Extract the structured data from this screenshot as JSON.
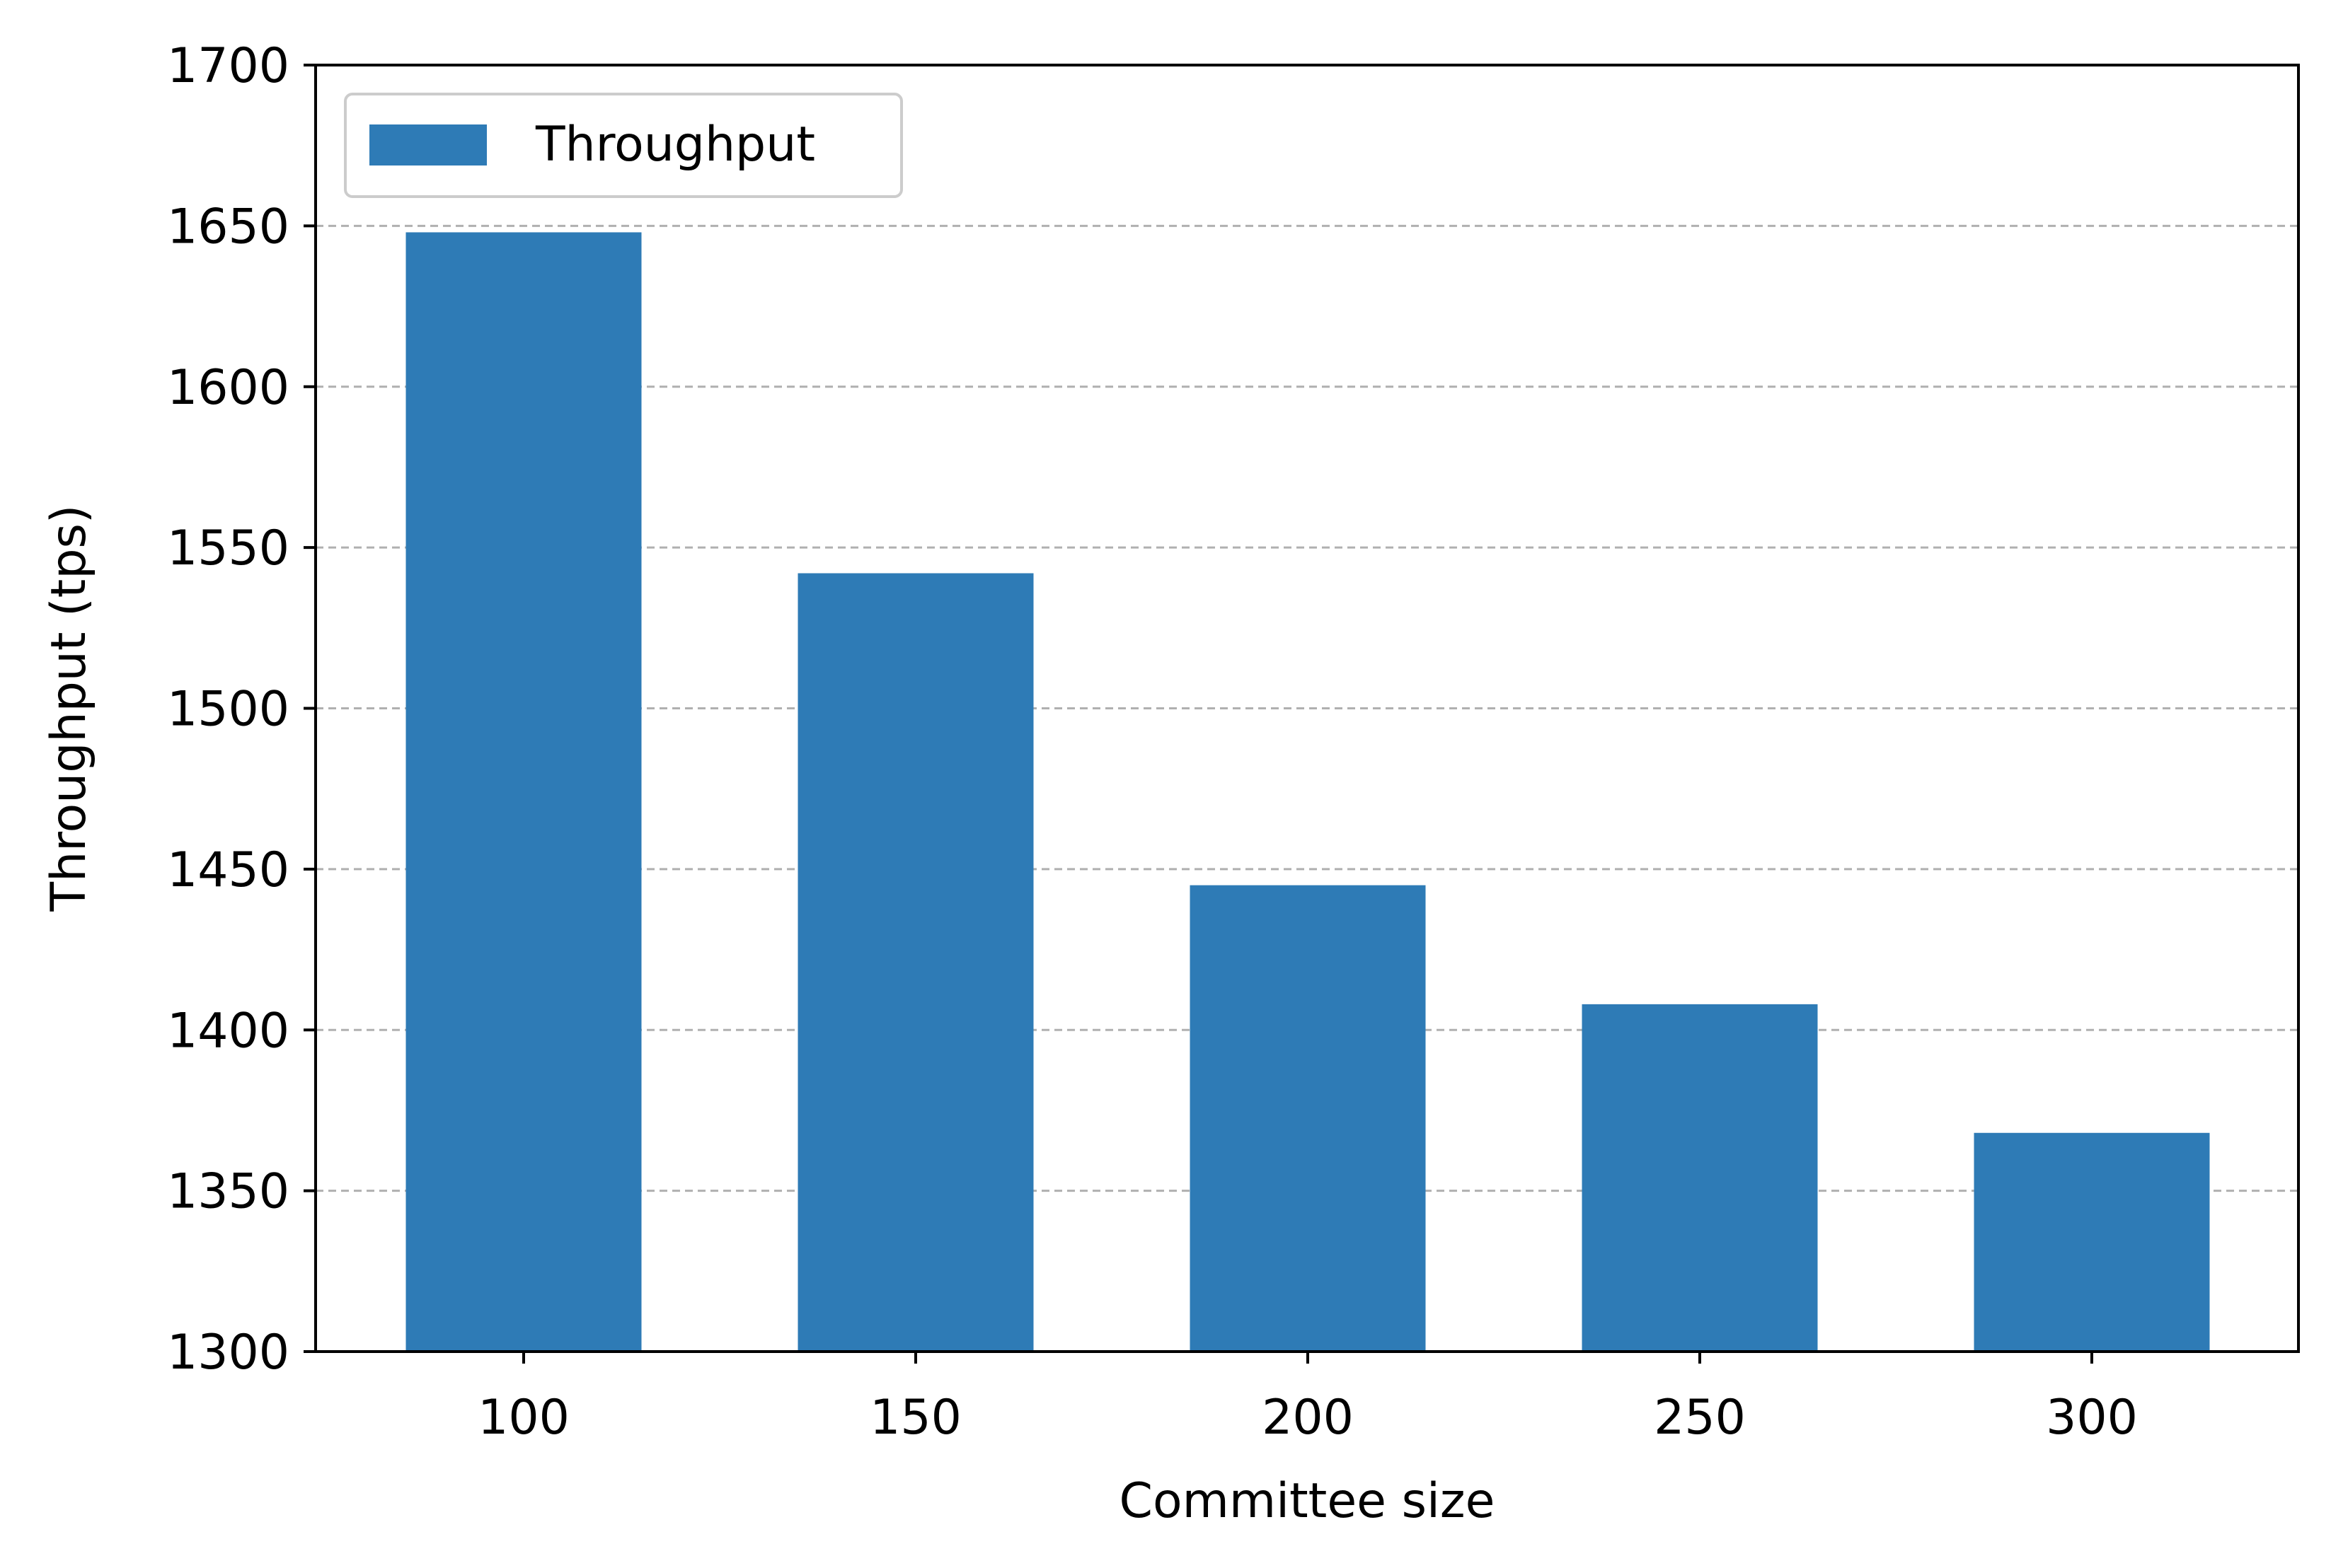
{
  "chart_data": {
    "type": "bar",
    "title": "",
    "xlabel": "Committee size",
    "ylabel": "Throughput (tps)",
    "categories": [
      "100",
      "150",
      "200",
      "250",
      "300"
    ],
    "series": [
      {
        "name": "Throughput",
        "color": "#2e7bb6",
        "values": [
          1648,
          1542,
          1445,
          1408,
          1368
        ]
      }
    ],
    "ylim": [
      1300,
      1700
    ],
    "yticks": [
      "1300",
      "1350",
      "1400",
      "1450",
      "1500",
      "1550",
      "1600",
      "1650",
      "1700"
    ],
    "grid": "horizontal-dashed",
    "legend_position": "top-left"
  }
}
